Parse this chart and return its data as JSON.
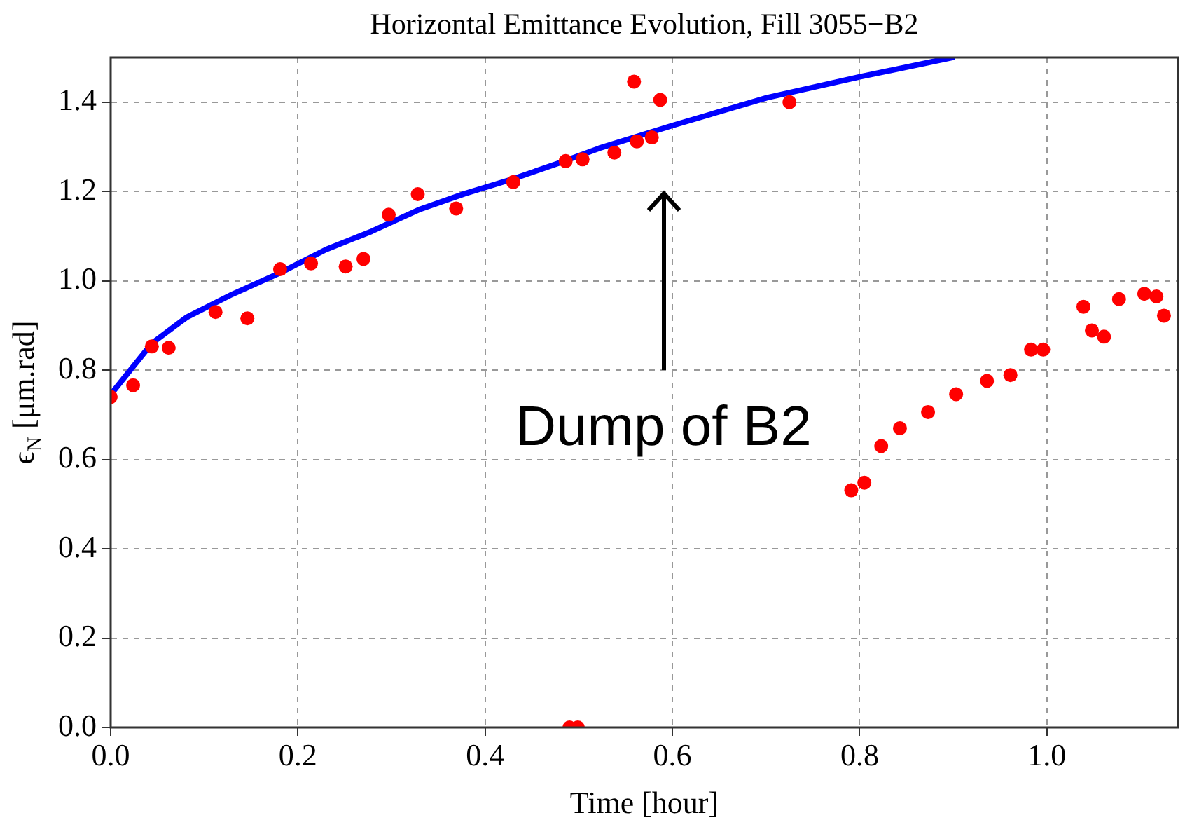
{
  "chart_data": {
    "type": "scatter",
    "title": "Horizontal Emittance Evolution, Fill 3055−B2",
    "xlabel": "Time [hour]",
    "ylabel": "ϵ$_{N}$ [μm.rad]",
    "xlim": [
      0,
      1.14
    ],
    "ylim": [
      0,
      1.5
    ],
    "xticks": [
      {
        "value": 0,
        "label": "0.0"
      },
      {
        "value": 0.2,
        "label": "0.2"
      },
      {
        "value": 0.4,
        "label": "0.4"
      },
      {
        "value": 0.6,
        "label": "0.6"
      },
      {
        "value": 0.8,
        "label": "0.8"
      },
      {
        "value": 1,
        "label": "1.0"
      }
    ],
    "yticks": [
      {
        "value": 0,
        "label": "0.0"
      },
      {
        "value": 0.2,
        "label": "0.2"
      },
      {
        "value": 0.4,
        "label": "0.4"
      },
      {
        "value": 0.6,
        "label": "0.6"
      },
      {
        "value": 0.8,
        "label": "0.8"
      },
      {
        "value": 1,
        "label": "1.0"
      },
      {
        "value": 1.2,
        "label": "1.2"
      },
      {
        "value": 1.4,
        "label": "1.4"
      }
    ],
    "grid": true,
    "line_style": "solid",
    "annotations": [
      "Dump of B2"
    ],
    "series": [
      {
        "type": "line",
        "color": "#0000ff",
        "marker": "none",
        "x": [
          0,
          0.006,
          0.044,
          0.081,
          0.13,
          0.18,
          0.23,
          0.279,
          0.329,
          0.378,
          0.428,
          0.478,
          0.522,
          0.599,
          0.701,
          0.801,
          0.899
        ],
        "values": [
          0.745,
          0.761,
          0.86,
          0.918,
          0.97,
          1.017,
          1.07,
          1.111,
          1.159,
          1.195,
          1.227,
          1.263,
          1.297,
          1.347,
          1.41,
          1.457,
          1.5
        ]
      },
      {
        "color": "#ff0000",
        "marker": "circle",
        "x": [
          0,
          0.024,
          0.044,
          0.062,
          0.112,
          0.146,
          0.181,
          0.214,
          0.251,
          0.27,
          0.297,
          0.328,
          0.369,
          0.43,
          0.486,
          0.49,
          0.499,
          0.504,
          0.538,
          0.559,
          0.562,
          0.578,
          0.587,
          0.725,
          0.791,
          0.805,
          0.823,
          0.843,
          0.873,
          0.903,
          0.936,
          0.961,
          0.983,
          0.996,
          1.039,
          1.048,
          1.061,
          1.077,
          1.104,
          1.117,
          1.125
        ],
        "values": [
          0.74,
          0.766,
          0.853,
          0.85,
          0.93,
          0.916,
          1.026,
          1.039,
          1.032,
          1.049,
          1.148,
          1.194,
          1.162,
          1.221,
          1.268,
          0,
          0,
          1.272,
          1.287,
          1.446,
          1.312,
          1.321,
          1.405,
          1.4,
          0.531,
          0.548,
          0.63,
          0.67,
          0.706,
          0.746,
          0.776,
          0.789,
          0.846,
          0.846,
          0.942,
          0.889,
          0.875,
          0.959,
          0.971,
          0.965,
          0.922
        ]
      }
    ]
  }
}
